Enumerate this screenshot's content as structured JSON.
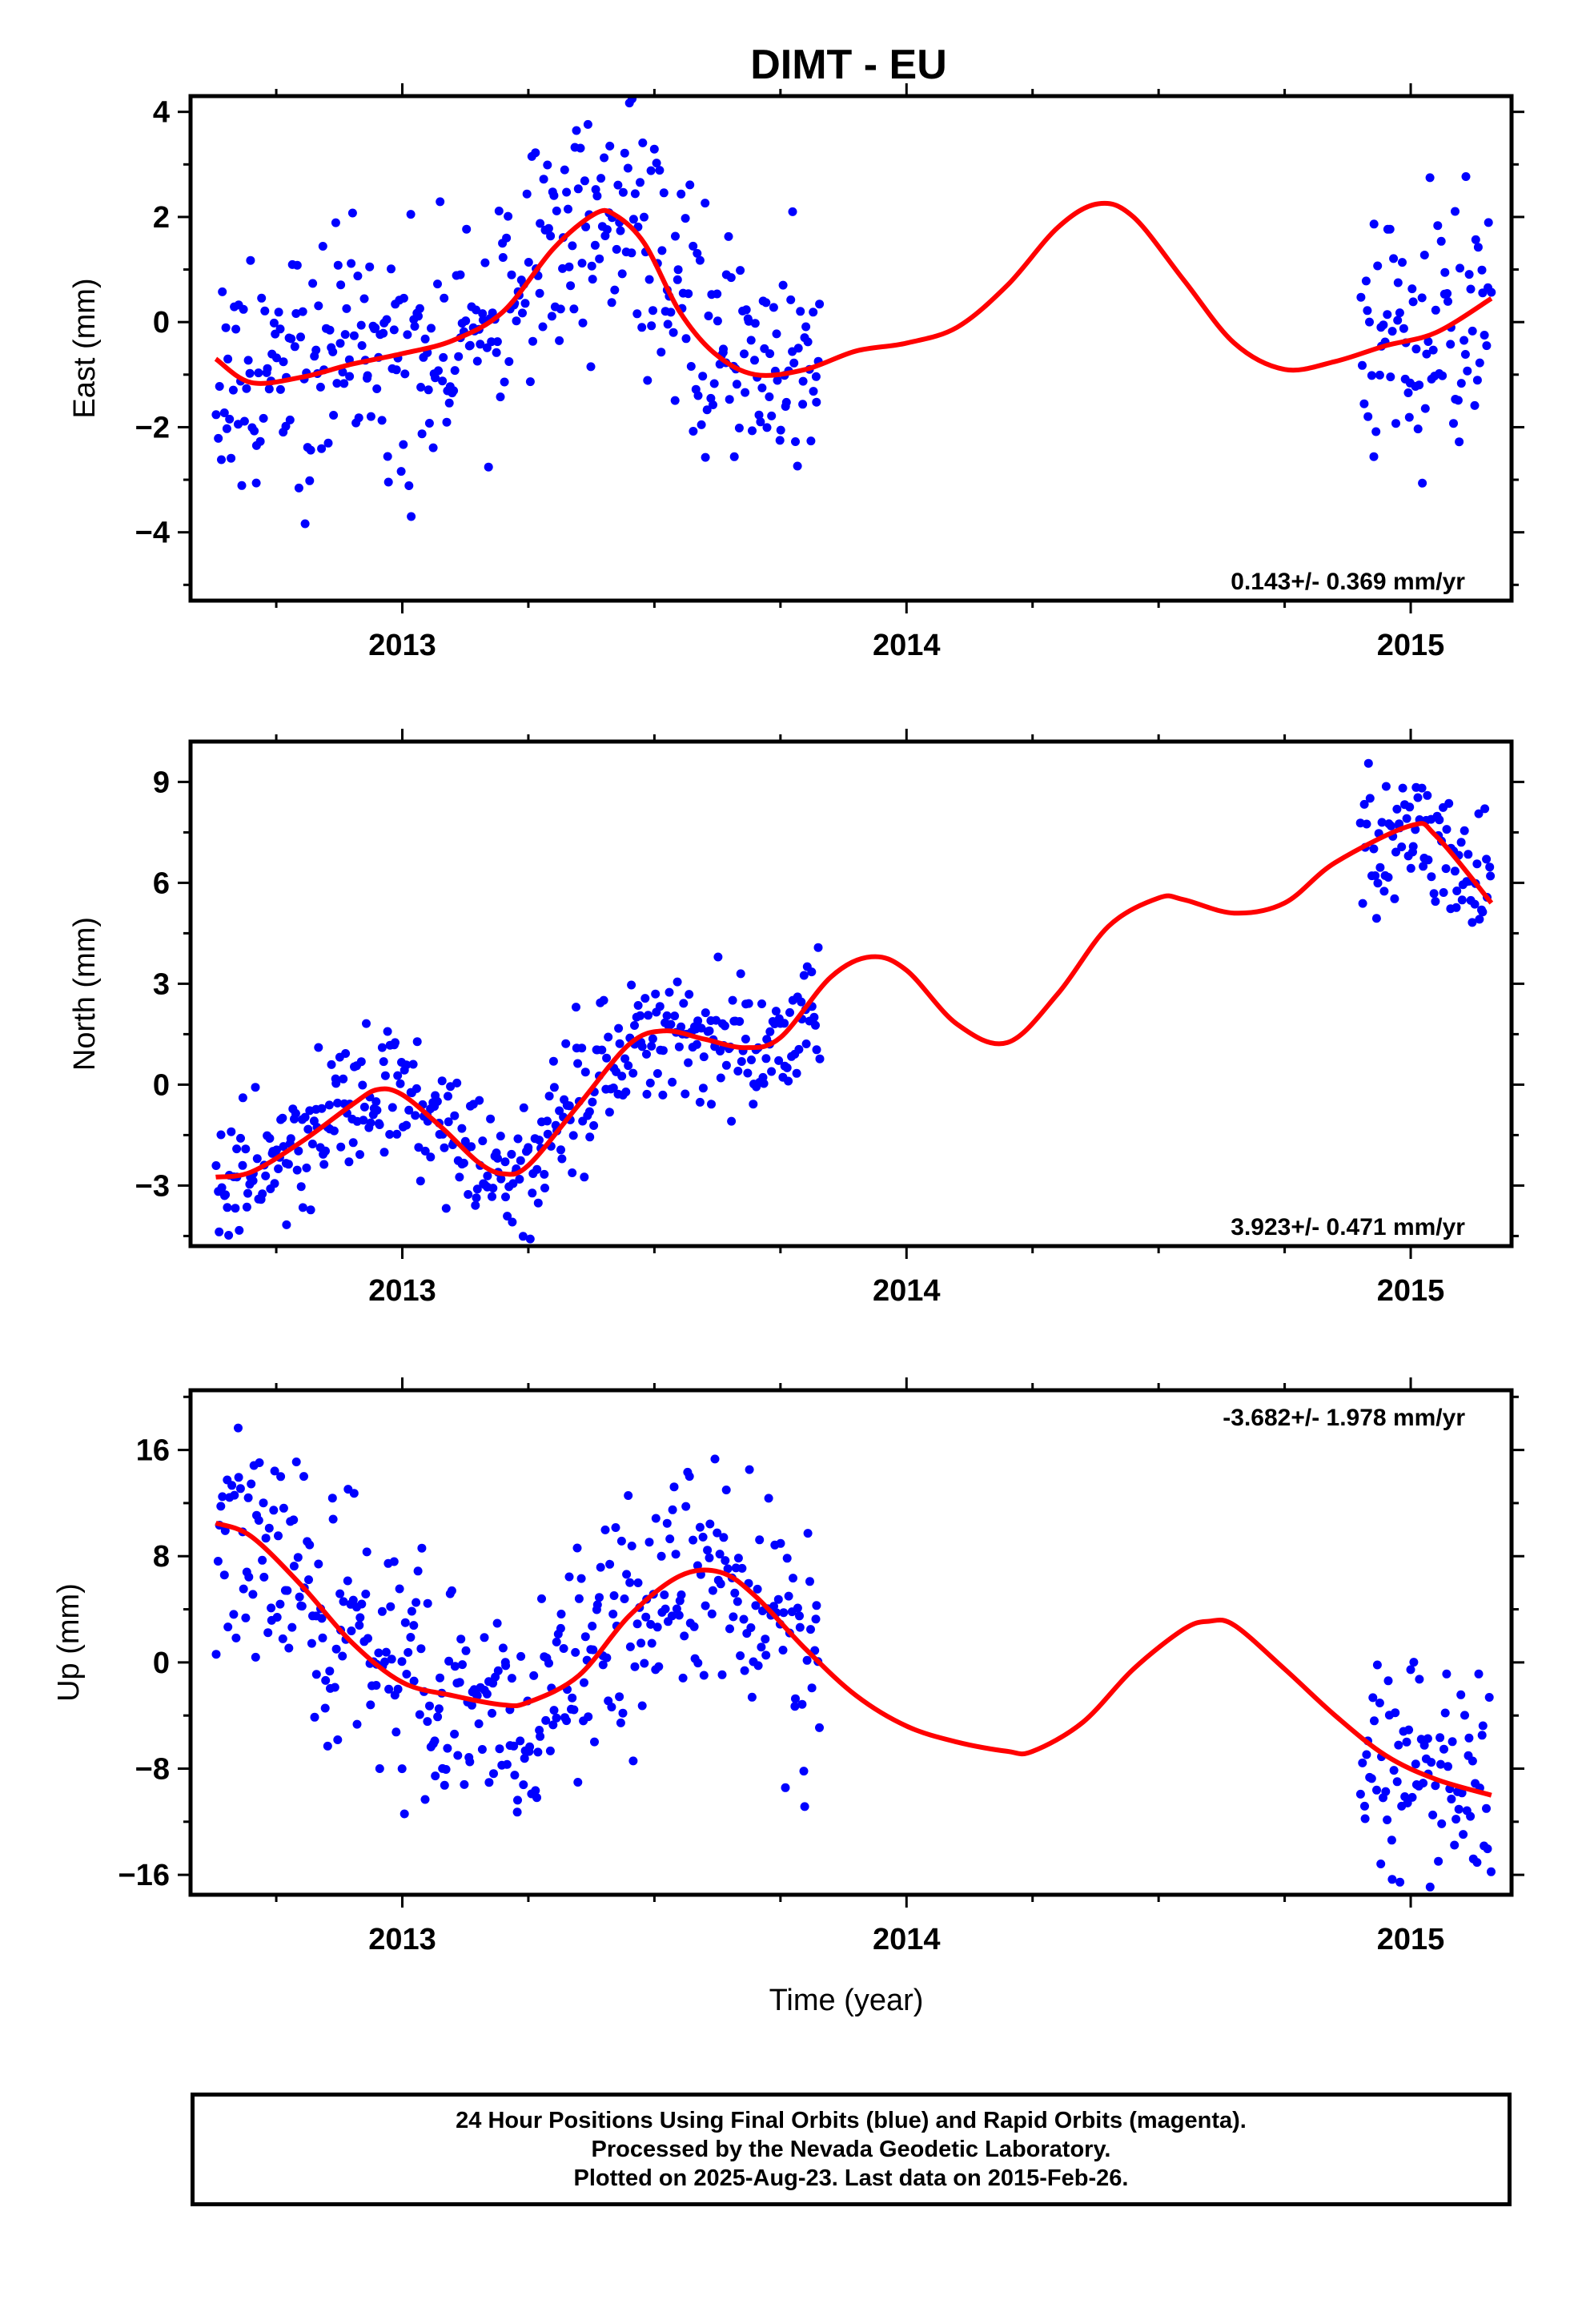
{
  "title": "DIMT - EU",
  "colors": {
    "data_points": "#0000ff",
    "model_curve": "#ff0000",
    "frame": "#000000"
  },
  "chart_data": [
    {
      "type": "scatter",
      "panel": "east",
      "ylabel": "East (mm)",
      "xlabel": "",
      "xlim": [
        2012.58,
        2015.2
      ],
      "ylim": [
        -5.3,
        4.3
      ],
      "x_ticks": [
        2013,
        2014,
        2015
      ],
      "y_ticks": [
        4,
        2,
        0,
        -2,
        -4
      ],
      "y_tick_labels": [
        "4",
        "2",
        "0",
        "−2",
        "−4"
      ],
      "rate_text": "0.143+/- 0.369 mm/yr",
      "rate_position": "bottom-right",
      "data_segments": [
        {
          "x_range": [
            2012.63,
            2013.83
          ]
        },
        {
          "x_range": [
            2014.9,
            2015.16
          ]
        }
      ],
      "scatter_sigma": 1.15,
      "seed": 11,
      "series": [
        {
          "name": "",
          "kind": "model",
          "x": [
            2012.63,
            2012.7,
            2012.8,
            2012.9,
            2013.0,
            2013.1,
            2013.2,
            2013.3,
            2013.38,
            2013.42,
            2013.48,
            2013.55,
            2013.62,
            2013.7,
            2013.8,
            2013.9,
            2014.0,
            2014.1,
            2014.2,
            2014.3,
            2014.38,
            2014.45,
            2014.55,
            2014.65,
            2014.75,
            2014.85,
            2014.95,
            2015.05,
            2015.16
          ],
          "y": [
            -0.7,
            -1.15,
            -1.05,
            -0.8,
            -0.6,
            -0.35,
            0.2,
            1.4,
            2.05,
            2.05,
            1.5,
            0.2,
            -0.6,
            -1.0,
            -0.9,
            -0.55,
            -0.4,
            -0.1,
            0.7,
            1.8,
            2.25,
            2.0,
            0.8,
            -0.4,
            -0.9,
            -0.75,
            -0.45,
            -0.2,
            0.45
          ]
        }
      ]
    },
    {
      "type": "scatter",
      "panel": "north",
      "ylabel": "North (mm)",
      "xlabel": "",
      "xlim": [
        2012.58,
        2015.2
      ],
      "ylim": [
        -4.8,
        10.2
      ],
      "x_ticks": [
        2013,
        2014,
        2015
      ],
      "y_ticks": [
        9,
        6,
        3,
        0,
        -3
      ],
      "y_tick_labels": [
        "9",
        "6",
        "3",
        "0",
        "−3"
      ],
      "rate_text": "3.923+/- 0.471 mm/yr",
      "rate_position": "bottom-right",
      "data_segments": [
        {
          "x_range": [
            2012.63,
            2013.83
          ]
        },
        {
          "x_range": [
            2014.9,
            2015.16
          ]
        }
      ],
      "scatter_sigma": 1.0,
      "seed": 23,
      "series": [
        {
          "name": "",
          "kind": "model",
          "x": [
            2012.63,
            2012.7,
            2012.8,
            2012.9,
            2012.95,
            2013.0,
            2013.08,
            2013.15,
            2013.2,
            2013.25,
            2013.35,
            2013.45,
            2013.52,
            2013.6,
            2013.68,
            2013.75,
            2013.85,
            2013.93,
            2014.0,
            2014.1,
            2014.2,
            2014.3,
            2014.4,
            2014.5,
            2014.55,
            2014.65,
            2014.75,
            2014.85,
            2015.0,
            2015.05,
            2015.16
          ],
          "y": [
            -2.75,
            -2.6,
            -1.7,
            -0.6,
            -0.15,
            -0.3,
            -1.3,
            -2.3,
            -2.65,
            -2.4,
            -0.6,
            1.2,
            1.6,
            1.35,
            1.1,
            1.4,
            3.2,
            3.8,
            3.4,
            1.8,
            1.25,
            2.7,
            4.7,
            5.55,
            5.5,
            5.1,
            5.4,
            6.6,
            7.7,
            7.4,
            5.4
          ]
        }
      ]
    },
    {
      "type": "scatter",
      "panel": "up",
      "ylabel": "Up (mm)",
      "xlabel": "Time (year)",
      "xlim": [
        2012.58,
        2015.2
      ],
      "ylim": [
        -17.5,
        20.5
      ],
      "x_ticks": [
        2013,
        2014,
        2015
      ],
      "y_ticks": [
        16,
        8,
        0,
        -8,
        -16
      ],
      "y_tick_labels": [
        "16",
        "8",
        "0",
        "−8",
        "−16"
      ],
      "rate_text": "-3.682+/- 1.978 mm/yr",
      "rate_position": "top-right",
      "data_segments": [
        {
          "x_range": [
            2012.63,
            2013.83
          ]
        },
        {
          "x_range": [
            2014.9,
            2015.16
          ]
        }
      ],
      "scatter_sigma": 4.5,
      "seed": 37,
      "series": [
        {
          "name": "",
          "kind": "model",
          "x": [
            2012.63,
            2012.7,
            2012.8,
            2012.9,
            2013.0,
            2013.1,
            2013.2,
            2013.25,
            2013.35,
            2013.45,
            2013.55,
            2013.63,
            2013.7,
            2013.8,
            2013.9,
            2014.0,
            2014.1,
            2014.2,
            2014.25,
            2014.35,
            2014.45,
            2014.55,
            2014.6,
            2014.65,
            2014.75,
            2014.85,
            2014.95,
            2015.05,
            2015.16
          ],
          "y": [
            10.5,
            9.5,
            5.8,
            1.5,
            -1.5,
            -2.5,
            -3.2,
            -3.0,
            -1.0,
            3.5,
            6.5,
            6.8,
            5.0,
            1.0,
            -2.5,
            -4.8,
            -6.0,
            -6.7,
            -6.7,
            -4.5,
            -0.5,
            2.5,
            3.1,
            2.8,
            -0.5,
            -4.0,
            -7.0,
            -8.8,
            -10.0
          ]
        }
      ]
    }
  ],
  "caption": {
    "line1": "24 Hour Positions Using Final Orbits (blue) and Rapid Orbits (magenta).",
    "line2": "Processed by the Nevada Geodetic Laboratory.",
    "line3": "Plotted on 2025-Aug-23. Last data on 2015-Feb-26."
  }
}
